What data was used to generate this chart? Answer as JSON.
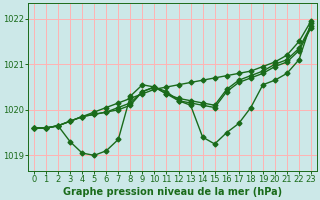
{
  "bg_color": "#cce8e8",
  "grid_color": "#ffb3b3",
  "line_color": "#1a6b1a",
  "marker": "D",
  "markersize": 2.5,
  "linewidth": 1.0,
  "xlabel": "Graphe pression niveau de la mer (hPa)",
  "xlabel_fontsize": 7,
  "tick_fontsize": 6,
  "ylim": [
    1018.65,
    1022.35
  ],
  "yticks": [
    1019,
    1020,
    1021,
    1022
  ],
  "xlim": [
    -0.5,
    23.5
  ],
  "xticks": [
    0,
    1,
    2,
    3,
    4,
    5,
    6,
    7,
    8,
    9,
    10,
    11,
    12,
    13,
    14,
    15,
    16,
    17,
    18,
    19,
    20,
    21,
    22,
    23
  ],
  "series": [
    [
      1019.6,
      1019.6,
      1019.65,
      1019.75,
      1019.85,
      1019.95,
      1020.05,
      1020.15,
      1020.25,
      1020.35,
      1020.45,
      1020.5,
      1020.55,
      1020.6,
      1020.65,
      1020.7,
      1020.75,
      1020.8,
      1020.85,
      1020.95,
      1021.05,
      1021.2,
      1021.5,
      1021.95
    ],
    [
      1019.6,
      1019.6,
      1019.65,
      1019.3,
      1019.05,
      1019.0,
      1019.1,
      1019.35,
      1020.3,
      1020.55,
      1020.5,
      1020.4,
      1020.2,
      1020.1,
      1019.4,
      1019.25,
      1019.5,
      1019.7,
      1020.05,
      1020.55,
      1020.65,
      1020.8,
      1021.1,
      1021.9
    ],
    [
      1019.6,
      1019.6,
      1019.65,
      1019.75,
      1019.85,
      1019.9,
      1019.95,
      1020.05,
      1020.15,
      1020.4,
      1020.5,
      1020.35,
      1020.25,
      1020.2,
      1020.15,
      1020.1,
      1020.45,
      1020.65,
      1020.75,
      1020.85,
      1021.0,
      1021.1,
      1021.35,
      1021.85
    ],
    [
      1019.6,
      1019.6,
      1019.65,
      1019.75,
      1019.85,
      1019.9,
      1019.95,
      1020.0,
      1020.1,
      1020.4,
      1020.5,
      1020.35,
      1020.2,
      1020.15,
      1020.1,
      1020.05,
      1020.4,
      1020.6,
      1020.7,
      1020.8,
      1020.95,
      1021.05,
      1021.3,
      1021.8
    ]
  ]
}
